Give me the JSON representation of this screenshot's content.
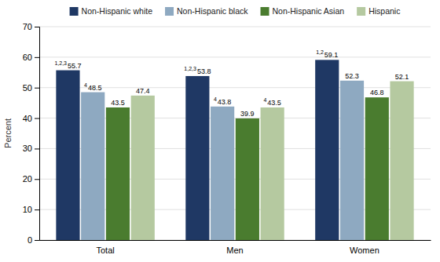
{
  "chart_data": {
    "type": "bar",
    "y_label": "Percent",
    "categories": [
      "Total",
      "Men",
      "Women"
    ],
    "series": [
      {
        "name": "Non-Hispanic white",
        "color": "#1F3864",
        "values": [
          55.7,
          53.8,
          59.1
        ],
        "superscripts": [
          "1,2,3",
          "1,2,3",
          "1,2"
        ]
      },
      {
        "name": "Non-Hispanic black",
        "color": "#8EA9C1",
        "values": [
          48.5,
          43.8,
          52.3
        ],
        "superscripts": [
          "4",
          "4",
          null
        ]
      },
      {
        "name": "Non-Hispanic Asian",
        "color": "#4A7C2F",
        "values": [
          43.5,
          39.9,
          46.8
        ]
      },
      {
        "name": "Hispanic",
        "color": "#B5C9A0",
        "values": [
          47.4,
          43.5,
          52.1
        ],
        "superscripts": [
          null,
          "4",
          null
        ]
      }
    ],
    "ylim": [
      0,
      70
    ],
    "yticks": [
      0,
      10,
      20,
      30,
      40,
      50,
      60,
      70
    ],
    "grid": true,
    "legend": "top",
    "data_labels": true
  }
}
